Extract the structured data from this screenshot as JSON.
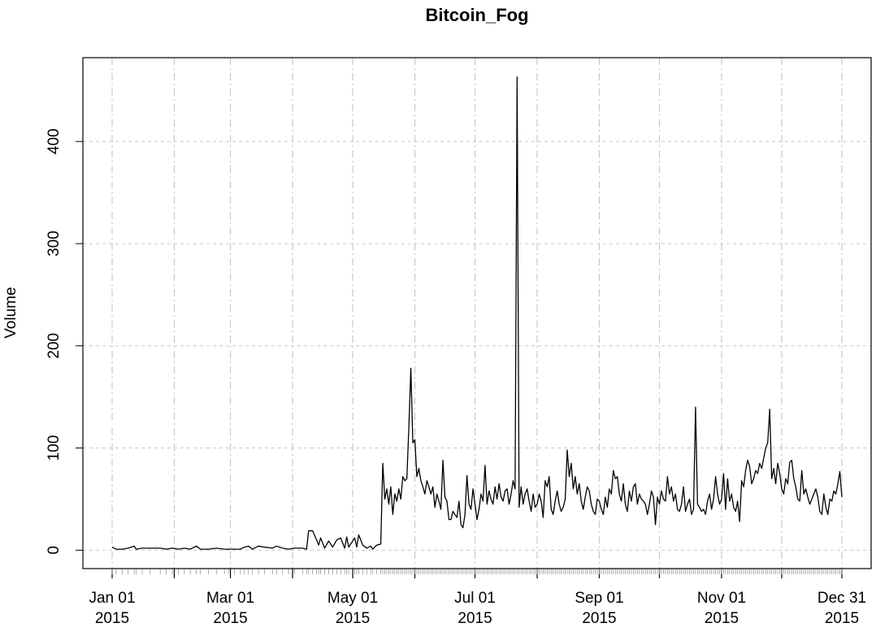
{
  "chart_data": {
    "type": "line",
    "title": "Bitcoin_Fog",
    "ylabel": "Volume",
    "color": "#000000",
    "grid": true,
    "ylim": [
      -18,
      482
    ],
    "yticks": [
      0,
      100,
      200,
      300,
      400
    ],
    "xlim": [
      "2015-01-01",
      "2015-12-31"
    ],
    "xticks": [
      {
        "value": "2015-01-01",
        "label": [
          "Jan 01",
          "2015"
        ]
      },
      {
        "value": "2015-02-01",
        "label": null
      },
      {
        "value": "2015-03-01",
        "label": [
          "Mar 01",
          "2015"
        ]
      },
      {
        "value": "2015-04-01",
        "label": null
      },
      {
        "value": "2015-05-01",
        "label": [
          "May 01",
          "2015"
        ]
      },
      {
        "value": "2015-06-01",
        "label": null
      },
      {
        "value": "2015-07-01",
        "label": [
          "Jul 01",
          "2015"
        ]
      },
      {
        "value": "2015-08-01",
        "label": null
      },
      {
        "value": "2015-09-01",
        "label": [
          "Sep 01",
          "2015"
        ]
      },
      {
        "value": "2015-10-01",
        "label": null
      },
      {
        "value": "2015-11-01",
        "label": [
          "Nov 01",
          "2015"
        ]
      },
      {
        "value": "2015-12-01",
        "label": null
      },
      {
        "value": "2015-12-31",
        "label": [
          "Dec 31",
          "2015"
        ]
      }
    ],
    "x": [
      "2015-01-01",
      "2015-01-03",
      "2015-01-06",
      "2015-01-09",
      "2015-01-12",
      "2015-01-13",
      "2015-01-16",
      "2015-01-20",
      "2015-01-25",
      "2015-01-28",
      "2015-01-31",
      "2015-02-03",
      "2015-02-06",
      "2015-02-09",
      "2015-02-12",
      "2015-02-14",
      "2015-02-18",
      "2015-02-22",
      "2015-02-26",
      "2015-02-28",
      "2015-03-03",
      "2015-03-06",
      "2015-03-08",
      "2015-03-10",
      "2015-03-12",
      "2015-03-15",
      "2015-03-18",
      "2015-03-22",
      "2015-03-24",
      "2015-03-27",
      "2015-03-30",
      "2015-04-02",
      "2015-04-06",
      "2015-04-08",
      "2015-04-09",
      "2015-04-11",
      "2015-04-13",
      "2015-04-14",
      "2015-04-15",
      "2015-04-17",
      "2015-04-19",
      "2015-04-21",
      "2015-04-23",
      "2015-04-25",
      "2015-04-27",
      "2015-04-28",
      "2015-04-29",
      "2015-05-02",
      "2015-05-03",
      "2015-05-04",
      "2015-05-06",
      "2015-05-08",
      "2015-05-10",
      "2015-05-11",
      "2015-05-13",
      "2015-05-15",
      "2015-05-16",
      "2015-05-17",
      "2015-05-18",
      "2015-05-19",
      "2015-05-20",
      "2015-05-21",
      "2015-05-22",
      "2015-05-23",
      "2015-05-24",
      "2015-05-25",
      "2015-05-26",
      "2015-05-27",
      "2015-05-28",
      "2015-05-29",
      "2015-05-30",
      "2015-05-31",
      "2015-06-01",
      "2015-06-02",
      "2015-06-03",
      "2015-06-04",
      "2015-06-05",
      "2015-06-06",
      "2015-06-07",
      "2015-06-08",
      "2015-06-09",
      "2015-06-10",
      "2015-06-11",
      "2015-06-12",
      "2015-06-13",
      "2015-06-14",
      "2015-06-15",
      "2015-06-16",
      "2015-06-17",
      "2015-06-18",
      "2015-06-19",
      "2015-06-20",
      "2015-06-21",
      "2015-06-22",
      "2015-06-23",
      "2015-06-24",
      "2015-06-25",
      "2015-06-26",
      "2015-06-27",
      "2015-06-28",
      "2015-06-29",
      "2015-06-30",
      "2015-07-01",
      "2015-07-02",
      "2015-07-03",
      "2015-07-04",
      "2015-07-05",
      "2015-07-06",
      "2015-07-07",
      "2015-07-08",
      "2015-07-09",
      "2015-07-10",
      "2015-07-11",
      "2015-07-12",
      "2015-07-13",
      "2015-07-14",
      "2015-07-15",
      "2015-07-16",
      "2015-07-17",
      "2015-07-18",
      "2015-07-19",
      "2015-07-20",
      "2015-07-21",
      "2015-07-22",
      "2015-07-23",
      "2015-07-24",
      "2015-07-25",
      "2015-07-26",
      "2015-07-27",
      "2015-07-28",
      "2015-07-29",
      "2015-07-30",
      "2015-07-31",
      "2015-08-01",
      "2015-08-02",
      "2015-08-03",
      "2015-08-04",
      "2015-08-05",
      "2015-08-06",
      "2015-08-07",
      "2015-08-08",
      "2015-08-09",
      "2015-08-10",
      "2015-08-11",
      "2015-08-12",
      "2015-08-13",
      "2015-08-14",
      "2015-08-15",
      "2015-08-16",
      "2015-08-17",
      "2015-08-18",
      "2015-08-19",
      "2015-08-20",
      "2015-08-21",
      "2015-08-22",
      "2015-08-23",
      "2015-08-24",
      "2015-08-25",
      "2015-08-26",
      "2015-08-27",
      "2015-08-28",
      "2015-08-29",
      "2015-08-30",
      "2015-08-31",
      "2015-09-01",
      "2015-09-02",
      "2015-09-03",
      "2015-09-04",
      "2015-09-05",
      "2015-09-06",
      "2015-09-07",
      "2015-09-08",
      "2015-09-09",
      "2015-09-10",
      "2015-09-11",
      "2015-09-12",
      "2015-09-13",
      "2015-09-14",
      "2015-09-15",
      "2015-09-16",
      "2015-09-17",
      "2015-09-18",
      "2015-09-19",
      "2015-09-20",
      "2015-09-21",
      "2015-09-22",
      "2015-09-23",
      "2015-09-24",
      "2015-09-25",
      "2015-09-26",
      "2015-09-27",
      "2015-09-28",
      "2015-09-29",
      "2015-09-30",
      "2015-10-01",
      "2015-10-02",
      "2015-10-03",
      "2015-10-04",
      "2015-10-05",
      "2015-10-06",
      "2015-10-07",
      "2015-10-08",
      "2015-10-09",
      "2015-10-10",
      "2015-10-11",
      "2015-10-12",
      "2015-10-13",
      "2015-10-14",
      "2015-10-15",
      "2015-10-16",
      "2015-10-17",
      "2015-10-18",
      "2015-10-19",
      "2015-10-20",
      "2015-10-21",
      "2015-10-22",
      "2015-10-23",
      "2015-10-24",
      "2015-10-25",
      "2015-10-26",
      "2015-10-27",
      "2015-10-28",
      "2015-10-29",
      "2015-10-30",
      "2015-10-31",
      "2015-11-01",
      "2015-11-02",
      "2015-11-03",
      "2015-11-04",
      "2015-11-05",
      "2015-11-06",
      "2015-11-07",
      "2015-11-08",
      "2015-11-09",
      "2015-11-10",
      "2015-11-11",
      "2015-11-12",
      "2015-11-13",
      "2015-11-14",
      "2015-11-15",
      "2015-11-16",
      "2015-11-17",
      "2015-11-18",
      "2015-11-19",
      "2015-11-20",
      "2015-11-21",
      "2015-11-22",
      "2015-11-23",
      "2015-11-24",
      "2015-11-25",
      "2015-11-26",
      "2015-11-27",
      "2015-11-28",
      "2015-11-29",
      "2015-11-30",
      "2015-12-01",
      "2015-12-02",
      "2015-12-03",
      "2015-12-04",
      "2015-12-05",
      "2015-12-06",
      "2015-12-07",
      "2015-12-08",
      "2015-12-09",
      "2015-12-10",
      "2015-12-11",
      "2015-12-12",
      "2015-12-13",
      "2015-12-14",
      "2015-12-15",
      "2015-12-16",
      "2015-12-17",
      "2015-12-18",
      "2015-12-19",
      "2015-12-20",
      "2015-12-21",
      "2015-12-22",
      "2015-12-23",
      "2015-12-24",
      "2015-12-25",
      "2015-12-26",
      "2015-12-27",
      "2015-12-28",
      "2015-12-29",
      "2015-12-30",
      "2015-12-31"
    ],
    "values": [
      3,
      1,
      1,
      2,
      4,
      1,
      2,
      2,
      2,
      1,
      2,
      1,
      2,
      1,
      4,
      1,
      1,
      2,
      1,
      1,
      1,
      1,
      3,
      4,
      1,
      4,
      3,
      2,
      4,
      2,
      1,
      2,
      2,
      1,
      19,
      19,
      10,
      5,
      12,
      2,
      9,
      3,
      10,
      12,
      2,
      13,
      3,
      12,
      3,
      15,
      5,
      2,
      4,
      1,
      5,
      6,
      85,
      50,
      60,
      45,
      62,
      35,
      55,
      48,
      60,
      50,
      72,
      68,
      70,
      120,
      178,
      105,
      108,
      72,
      80,
      68,
      62,
      55,
      68,
      62,
      55,
      62,
      42,
      55,
      48,
      40,
      88,
      52,
      48,
      30,
      30,
      38,
      35,
      32,
      48,
      25,
      22,
      35,
      73,
      45,
      40,
      60,
      45,
      30,
      40,
      55,
      48,
      83,
      45,
      58,
      50,
      45,
      62,
      50,
      65,
      52,
      48,
      58,
      60,
      45,
      55,
      68,
      60,
      463,
      42,
      62,
      45,
      55,
      60,
      48,
      38,
      55,
      42,
      45,
      55,
      48,
      32,
      68,
      62,
      72,
      40,
      35,
      48,
      58,
      45,
      38,
      42,
      50,
      98,
      72,
      85,
      60,
      72,
      55,
      65,
      48,
      40,
      52,
      62,
      58,
      45,
      38,
      35,
      50,
      48,
      40,
      35,
      52,
      42,
      60,
      55,
      78,
      70,
      72,
      55,
      48,
      65,
      45,
      38,
      58,
      48,
      62,
      65,
      45,
      55,
      50,
      48,
      45,
      35,
      45,
      58,
      52,
      25,
      52,
      45,
      58,
      50,
      48,
      72,
      55,
      62,
      48,
      55,
      40,
      38,
      45,
      62,
      38,
      45,
      50,
      35,
      40,
      140,
      45,
      42,
      38,
      40,
      35,
      48,
      55,
      40,
      50,
      72,
      55,
      45,
      50,
      75,
      40,
      70,
      48,
      55,
      42,
      38,
      48,
      28,
      68,
      62,
      78,
      88,
      82,
      65,
      70,
      78,
      75,
      85,
      80,
      90,
      100,
      105,
      138,
      70,
      80,
      65,
      85,
      75,
      60,
      55,
      70,
      65,
      86,
      88,
      70,
      62,
      50,
      48,
      78,
      55,
      60,
      52,
      45,
      50,
      55,
      60,
      52,
      38,
      35,
      55,
      42,
      35,
      50,
      48,
      58,
      55,
      65,
      77,
      52
    ]
  }
}
